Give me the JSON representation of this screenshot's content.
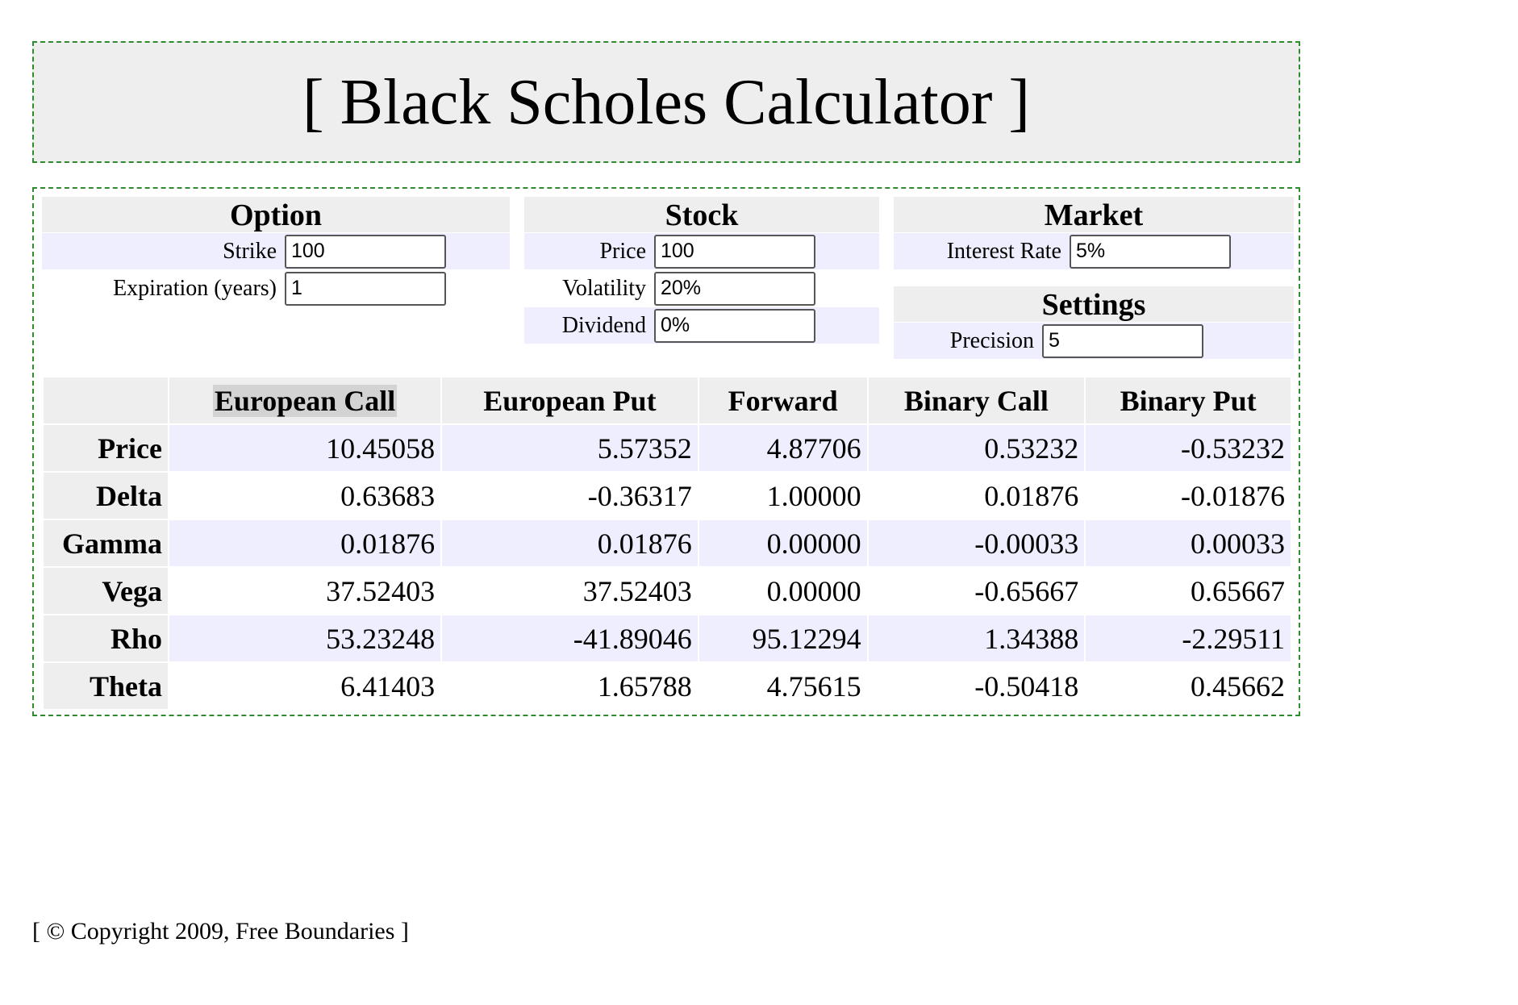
{
  "header": {
    "title": "[ Black Scholes Calculator ]"
  },
  "option": {
    "title": "Option",
    "strike_label": "Strike",
    "strike_value": "100",
    "expiration_label": "Expiration (years)",
    "expiration_value": "1"
  },
  "stock": {
    "title": "Stock",
    "price_label": "Price",
    "price_value": "100",
    "volatility_label": "Volatility",
    "volatility_value": "20%",
    "dividend_label": "Dividend",
    "dividend_value": "0%"
  },
  "market": {
    "title": "Market",
    "interest_label": "Interest Rate",
    "interest_value": "5%"
  },
  "settings": {
    "title": "Settings",
    "precision_label": "Precision",
    "precision_value": "5"
  },
  "results": {
    "columns": [
      "European Call",
      "European Put",
      "Forward",
      "Binary Call",
      "Binary Put"
    ],
    "rows": [
      {
        "label": "Price",
        "values": [
          "10.45058",
          "5.57352",
          "4.87706",
          "0.53232",
          "-0.53232"
        ]
      },
      {
        "label": "Delta",
        "values": [
          "0.63683",
          "-0.36317",
          "1.00000",
          "0.01876",
          "-0.01876"
        ]
      },
      {
        "label": "Gamma",
        "values": [
          "0.01876",
          "0.01876",
          "0.00000",
          "-0.00033",
          "0.00033"
        ]
      },
      {
        "label": "Vega",
        "values": [
          "37.52403",
          "37.52403",
          "0.00000",
          "-0.65667",
          "0.65667"
        ]
      },
      {
        "label": "Rho",
        "values": [
          "53.23248",
          "-41.89046",
          "95.12294",
          "1.34388",
          "-2.29511"
        ]
      },
      {
        "label": "Theta",
        "values": [
          "6.41403",
          "1.65788",
          "4.75615",
          "-0.50418",
          "0.45662"
        ]
      }
    ]
  },
  "footer": {
    "text": "[ © Copyright 2009, Free Boundaries ]"
  },
  "colors": {
    "border": "#2e8b2e",
    "header_bg": "#eeeeee",
    "row_shade": "#eeeeff"
  }
}
